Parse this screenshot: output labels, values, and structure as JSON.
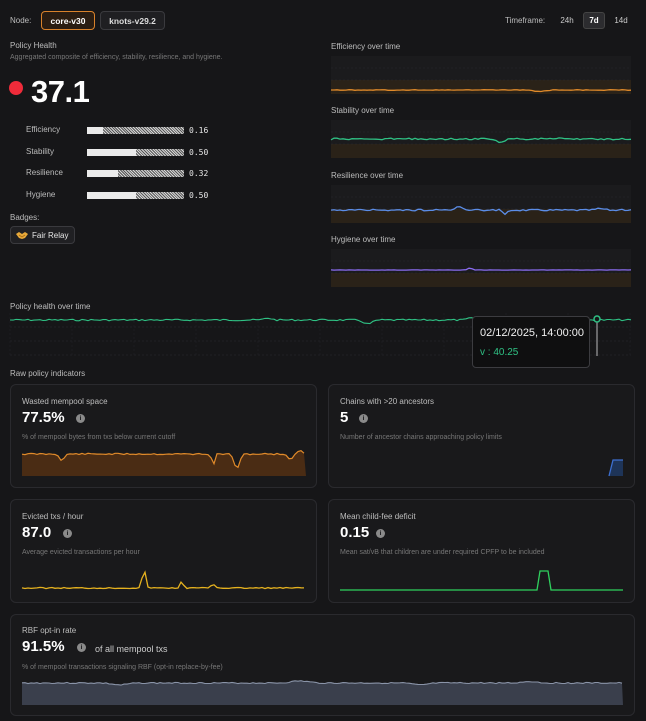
{
  "header": {
    "node_label": "Node:",
    "nodes": [
      {
        "label": "core-v30",
        "active": true
      },
      {
        "label": "knots-v29.2",
        "active": false
      }
    ],
    "timeframe_label": "Timeframe:",
    "timeframes": [
      {
        "label": "24h",
        "active": false
      },
      {
        "label": "7d",
        "active": true
      },
      {
        "label": "14d",
        "active": false
      }
    ]
  },
  "policy_health": {
    "title": "Policy Health",
    "subtitle": "Aggregated composite of efficiency, stability, resilience, and hygiene.",
    "score": "37.1",
    "status_color": "#ef2b3a",
    "components": [
      {
        "label": "Efficiency",
        "value": "0.16",
        "fraction": 0.16
      },
      {
        "label": "Stability",
        "value": "0.50",
        "fraction": 0.5
      },
      {
        "label": "Resilience",
        "value": "0.32",
        "fraction": 0.32
      },
      {
        "label": "Hygiene",
        "value": "0.50",
        "fraction": 0.5
      }
    ],
    "badges_label": "Badges:",
    "badges": [
      {
        "icon": "handshake-icon",
        "label": "Fair Relay"
      }
    ]
  },
  "mini_charts": {
    "efficiency": {
      "title": "Efficiency over time",
      "color": "#e08a2a"
    },
    "stability": {
      "title": "Stability over time",
      "color": "#2fc184"
    },
    "resilience": {
      "title": "Resilience over time",
      "color": "#5b8de8"
    },
    "hygiene": {
      "title": "Hygiene over time",
      "color": "#8a6cf0"
    }
  },
  "health_over_time": {
    "title": "Policy health over time",
    "color": "#2fc184",
    "tooltip": {
      "date": "02/12/2025, 14:00:00",
      "value_text": "v : 40.25"
    }
  },
  "raw": {
    "title": "Raw policy indicators",
    "cards": {
      "wasted": {
        "title": "Wasted mempool space",
        "value": "77.5%",
        "desc": "% of mempool bytes from txs below current cutoff",
        "color": "#e08a2a"
      },
      "chains": {
        "title": "Chains with >20 ancestors",
        "value": "5",
        "desc": "Number of ancestor chains approaching policy limits",
        "color": "#3d6fd0"
      },
      "evicted": {
        "title": "Evicted txs / hour",
        "value": "87.0",
        "desc": "Average evicted transactions per hour",
        "color": "#e6b21f"
      },
      "childfee": {
        "title": "Mean child-fee deficit",
        "value": "0.15",
        "desc": "Mean sat/vB that children are under required CPFP to be included",
        "color": "#2fd15e"
      },
      "rbf": {
        "title": "RBF opt-in rate",
        "value": "91.5%",
        "suffix": "of all mempool txs",
        "desc": "% of mempool transactions signaling RBF (opt-in replace-by-fee)",
        "color": "#8a94a8"
      }
    }
  }
}
